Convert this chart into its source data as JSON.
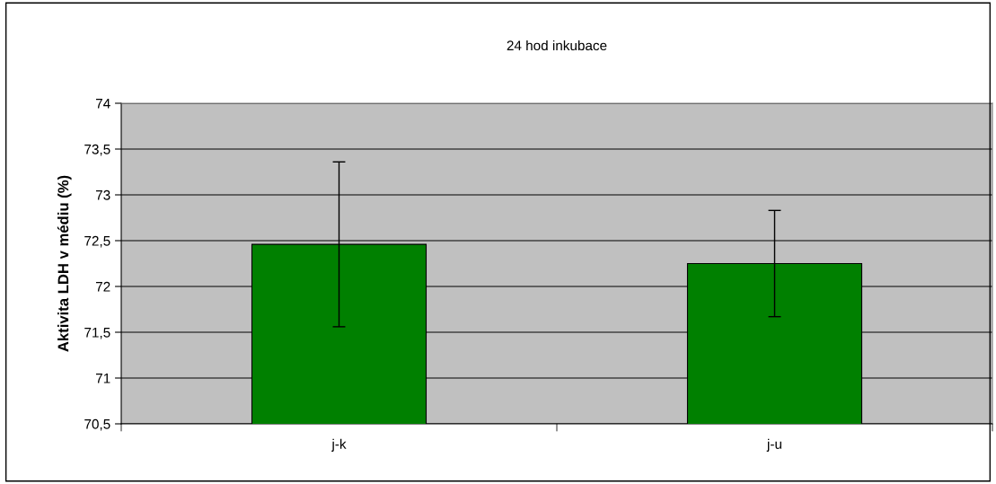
{
  "chart_data": {
    "type": "bar",
    "title": "24 hod inkubace",
    "ylabel": "Aktivita LDH v médiu (%)",
    "categories": [
      "j-k",
      "j-u"
    ],
    "values": [
      72.46,
      72.25
    ],
    "errors": [
      0.9,
      0.58
    ],
    "color": "#008000",
    "ylim": [
      70.5,
      74
    ],
    "yticks": [
      {
        "value": 70.5,
        "label": "70,5"
      },
      71,
      {
        "value": 71.5,
        "label": "71,5"
      },
      72,
      {
        "value": 72.5,
        "label": "72,5"
      },
      73,
      {
        "value": 73.5,
        "label": "73,5"
      },
      74
    ],
    "grid": "y",
    "legend": false
  }
}
